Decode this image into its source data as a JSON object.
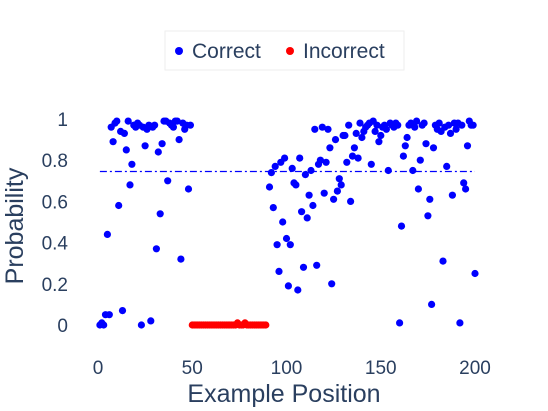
{
  "chart_data": {
    "type": "scatter",
    "xlabel": "Example Position",
    "ylabel": "Probability",
    "xlim": [
      -10,
      205
    ],
    "ylim": [
      -0.09,
      1.06
    ],
    "xticks": [
      0,
      50,
      100,
      150,
      200
    ],
    "xtick_labels": [
      "0",
      "50",
      "100",
      "150",
      "200"
    ],
    "yticks": [
      0,
      0.2,
      0.4,
      0.6,
      0.8,
      1
    ],
    "ytick_labels": [
      "0",
      "0.2",
      "0.4",
      "0.6",
      "0.8",
      "1"
    ],
    "grid": false,
    "legend_position": "top-center",
    "threshold_line": {
      "y": 0.745,
      "x_range": [
        1,
        200
      ],
      "style": "dash-dot",
      "color": "#0000ff"
    },
    "series": [
      {
        "name": "Correct",
        "color": "#0000ff",
        "points": [
          [
            1,
            0.0
          ],
          [
            2,
            0.01
          ],
          [
            3,
            0.0
          ],
          [
            4,
            0.05
          ],
          [
            5,
            0.44
          ],
          [
            6,
            0.05
          ],
          [
            7,
            0.96
          ],
          [
            8,
            0.89
          ],
          [
            9,
            0.98
          ],
          [
            10,
            0.99
          ],
          [
            11,
            0.58
          ],
          [
            12,
            0.94
          ],
          [
            13,
            0.07
          ],
          [
            14,
            0.93
          ],
          [
            15,
            0.85
          ],
          [
            16,
            0.99
          ],
          [
            17,
            0.68
          ],
          [
            18,
            0.78
          ],
          [
            19,
            0.97
          ],
          [
            20,
            0.96
          ],
          [
            21,
            0.98
          ],
          [
            22,
            0.97
          ],
          [
            23,
            0.0
          ],
          [
            24,
            0.96
          ],
          [
            25,
            0.87
          ],
          [
            26,
            0.95
          ],
          [
            27,
            0.97
          ],
          [
            28,
            0.02
          ],
          [
            29,
            0.96
          ],
          [
            30,
            0.97
          ],
          [
            31,
            0.37
          ],
          [
            32,
            0.84
          ],
          [
            33,
            0.54
          ],
          [
            34,
            0.88
          ],
          [
            35,
            0.99
          ],
          [
            36,
            0.99
          ],
          [
            37,
            0.7
          ],
          [
            38,
            0.98
          ],
          [
            39,
            0.97
          ],
          [
            40,
            0.96
          ],
          [
            41,
            0.99
          ],
          [
            42,
            0.99
          ],
          [
            43,
            0.9
          ],
          [
            44,
            0.32
          ],
          [
            45,
            0.98
          ],
          [
            46,
            0.95
          ],
          [
            47,
            0.97
          ],
          [
            48,
            0.66
          ],
          [
            49,
            0.97
          ],
          [
            91,
            0.67
          ],
          [
            92,
            0.74
          ],
          [
            93,
            0.57
          ],
          [
            94,
            0.77
          ],
          [
            95,
            0.39
          ],
          [
            96,
            0.26
          ],
          [
            97,
            0.79
          ],
          [
            98,
            0.5
          ],
          [
            99,
            0.81
          ],
          [
            100,
            0.42
          ],
          [
            101,
            0.19
          ],
          [
            102,
            0.39
          ],
          [
            103,
            0.76
          ],
          [
            104,
            0.69
          ],
          [
            105,
            0.68
          ],
          [
            106,
            0.17
          ],
          [
            107,
            0.81
          ],
          [
            108,
            0.55
          ],
          [
            109,
            0.28
          ],
          [
            110,
            0.73
          ],
          [
            111,
            0.52
          ],
          [
            112,
            0.63
          ],
          [
            113,
            0.75
          ],
          [
            114,
            0.58
          ],
          [
            115,
            0.95
          ],
          [
            116,
            0.29
          ],
          [
            117,
            0.78
          ],
          [
            118,
            0.8
          ],
          [
            119,
            0.96
          ],
          [
            120,
            0.64
          ],
          [
            121,
            0.79
          ],
          [
            122,
            0.95
          ],
          [
            123,
            0.86
          ],
          [
            124,
            0.2
          ],
          [
            125,
            0.61
          ],
          [
            126,
            0.9
          ],
          [
            127,
            0.65
          ],
          [
            128,
            0.71
          ],
          [
            129,
            0.68
          ],
          [
            130,
            0.92
          ],
          [
            131,
            0.92
          ],
          [
            132,
            0.79
          ],
          [
            133,
            0.97
          ],
          [
            134,
            0.6
          ],
          [
            135,
            0.82
          ],
          [
            136,
            0.86
          ],
          [
            137,
            0.93
          ],
          [
            138,
            0.81
          ],
          [
            139,
            0.98
          ],
          [
            140,
            0.91
          ],
          [
            141,
            0.94
          ],
          [
            142,
            0.96
          ],
          [
            143,
            0.97
          ],
          [
            144,
            0.98
          ],
          [
            145,
            0.78
          ],
          [
            146,
            0.99
          ],
          [
            147,
            0.94
          ],
          [
            148,
            0.97
          ],
          [
            149,
            0.89
          ],
          [
            150,
            0.92
          ],
          [
            151,
            0.96
          ],
          [
            152,
            0.97
          ],
          [
            153,
            0.95
          ],
          [
            154,
            0.75
          ],
          [
            155,
            0.98
          ],
          [
            156,
            0.97
          ],
          [
            157,
            0.96
          ],
          [
            158,
            0.98
          ],
          [
            159,
            0.97
          ],
          [
            160,
            0.01
          ],
          [
            161,
            0.48
          ],
          [
            162,
            0.82
          ],
          [
            163,
            0.87
          ],
          [
            164,
            0.91
          ],
          [
            165,
            0.97
          ],
          [
            166,
            0.98
          ],
          [
            167,
            0.75
          ],
          [
            168,
            0.96
          ],
          [
            169,
            0.99
          ],
          [
            170,
            0.66
          ],
          [
            171,
            0.8
          ],
          [
            172,
            0.97
          ],
          [
            173,
            0.98
          ],
          [
            174,
            0.88
          ],
          [
            175,
            0.53
          ],
          [
            176,
            0.61
          ],
          [
            177,
            0.1
          ],
          [
            178,
            0.86
          ],
          [
            179,
            0.97
          ],
          [
            180,
            0.95
          ],
          [
            181,
            0.98
          ],
          [
            182,
            0.94
          ],
          [
            183,
            0.31
          ],
          [
            184,
            0.96
          ],
          [
            185,
            0.77
          ],
          [
            186,
            0.97
          ],
          [
            187,
            0.93
          ],
          [
            188,
            0.63
          ],
          [
            189,
            0.98
          ],
          [
            190,
            0.95
          ],
          [
            191,
            0.98
          ],
          [
            192,
            0.01
          ],
          [
            193,
            0.97
          ],
          [
            194,
            0.69
          ],
          [
            195,
            0.66
          ],
          [
            196,
            0.87
          ],
          [
            197,
            0.99
          ],
          [
            198,
            0.97
          ],
          [
            199,
            0.97
          ],
          [
            200,
            0.25
          ]
        ]
      },
      {
        "name": "Incorrect",
        "color": "#ff0000",
        "points": [
          [
            50,
            0.0
          ],
          [
            51,
            0.0
          ],
          [
            52,
            0.0
          ],
          [
            53,
            0.0
          ],
          [
            54,
            0.0
          ],
          [
            55,
            0.0
          ],
          [
            56,
            0.0
          ],
          [
            57,
            0.0
          ],
          [
            58,
            0.0
          ],
          [
            59,
            0.0
          ],
          [
            60,
            0.0
          ],
          [
            61,
            0.0
          ],
          [
            62,
            0.0
          ],
          [
            63,
            0.0
          ],
          [
            64,
            0.0
          ],
          [
            65,
            0.0
          ],
          [
            66,
            0.0
          ],
          [
            67,
            0.0
          ],
          [
            68,
            0.0
          ],
          [
            69,
            0.0
          ],
          [
            70,
            0.0
          ],
          [
            71,
            0.0
          ],
          [
            72,
            0.0
          ],
          [
            73,
            0.0
          ],
          [
            74,
            0.01
          ],
          [
            75,
            0.0
          ],
          [
            76,
            0.0
          ],
          [
            77,
            0.0
          ],
          [
            78,
            0.01
          ],
          [
            79,
            0.0
          ],
          [
            80,
            0.0
          ],
          [
            81,
            0.0
          ],
          [
            82,
            0.0
          ],
          [
            83,
            0.0
          ],
          [
            84,
            0.0
          ],
          [
            85,
            0.0
          ],
          [
            86,
            0.0
          ],
          [
            87,
            0.0
          ],
          [
            88,
            0.0
          ],
          [
            89,
            0.0
          ]
        ]
      }
    ]
  }
}
